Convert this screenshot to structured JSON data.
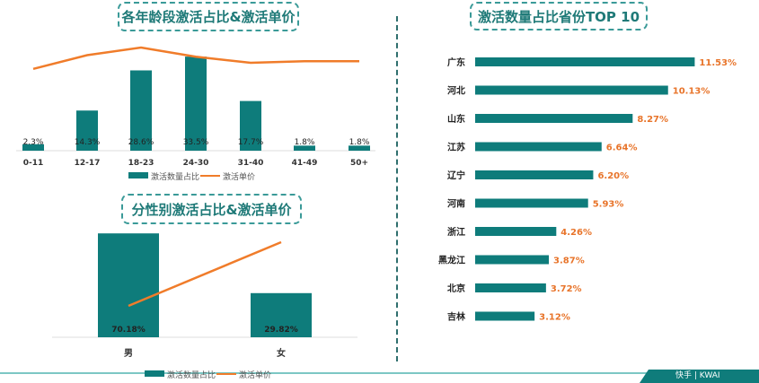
{
  "colors": {
    "bar": "#0e7c7b",
    "line": "#f07c2a",
    "label_orange": "#e8742a"
  },
  "footer": {
    "brand": "快手 | KWAI"
  },
  "chart_data": [
    {
      "type": "bar+line",
      "title": "各年龄段激活占比&激活单价",
      "categories": [
        "0-11",
        "12-17",
        "18-23",
        "24-30",
        "31-40",
        "41-49",
        "50+"
      ],
      "series": [
        {
          "name": "激活数量占比",
          "type": "bar",
          "values": [
            2.3,
            14.3,
            28.6,
            33.5,
            17.7,
            1.8,
            1.8
          ],
          "labels": [
            "2.3%",
            "14.3%",
            "28.6%",
            "33.5%",
            "17.7%",
            "1.8%",
            "1.8%"
          ]
        },
        {
          "name": "激活单价",
          "type": "line",
          "relative_values": [
            0.84,
            0.93,
            0.98,
            0.92,
            0.88,
            0.89,
            0.89
          ]
        }
      ],
      "legend": "bottom"
    },
    {
      "type": "bar+line",
      "title": "分性别激活占比&激活单价",
      "categories": [
        "男",
        "女"
      ],
      "series": [
        {
          "name": "激活数量占比",
          "type": "bar",
          "values": [
            70.18,
            29.82
          ],
          "labels": [
            "70.18%",
            "29.82%"
          ]
        },
        {
          "name": "激活单价",
          "type": "line",
          "relative_values": [
            0.33,
            1.0
          ]
        }
      ],
      "legend": "bottom"
    },
    {
      "type": "bar",
      "orientation": "horizontal",
      "title": "激活数量占比省份TOP 10",
      "categories": [
        "广东",
        "河北",
        "山东",
        "江苏",
        "辽宁",
        "河南",
        "浙江",
        "黑龙江",
        "北京",
        "吉林"
      ],
      "values": [
        11.53,
        10.13,
        8.27,
        6.64,
        6.2,
        5.93,
        4.26,
        3.87,
        3.72,
        3.12
      ],
      "labels": [
        "11.53%",
        "10.13%",
        "8.27%",
        "6.64%",
        "6.20%",
        "5.93%",
        "4.26%",
        "3.87%",
        "3.72%",
        "3.12%"
      ]
    }
  ]
}
